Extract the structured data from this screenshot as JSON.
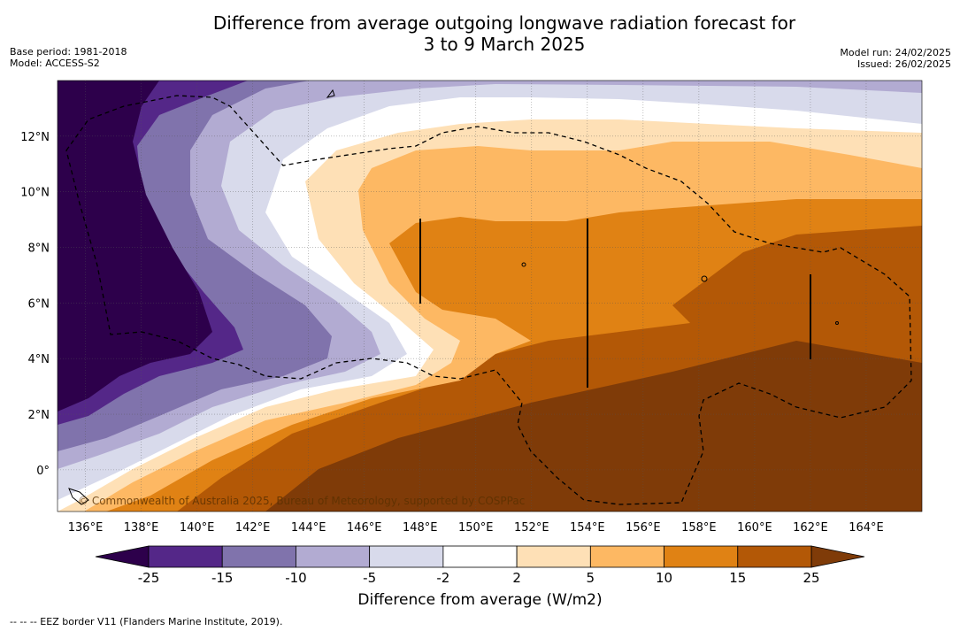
{
  "title_line1": "Difference from average outgoing longwave radiation forecast for",
  "title_line2": "3 to 9 March 2025",
  "base_period": "Base period: 1981-2018",
  "model": "Model: ACCESS-S2",
  "model_run": "Model run: 24/02/2025",
  "issued": "Issued: 26/02/2025",
  "copyright": "© Commonwealth of Australia 2025, Bureau of Meteorology, supported by COSPPac",
  "map": {
    "lon_ticks": [
      "136°E",
      "138°E",
      "140°E",
      "142°E",
      "144°E",
      "146°E",
      "148°E",
      "150°E",
      "152°E",
      "154°E",
      "156°E",
      "158°E",
      "160°E",
      "162°E",
      "164°E"
    ],
    "lat_ticks": [
      "12°N",
      "10°N",
      "8°N",
      "6°N",
      "4°N",
      "2°N",
      "0°"
    ],
    "lon_range": [
      135,
      166
    ],
    "lat_range": [
      -1.5,
      14
    ],
    "grid": "dotted"
  },
  "colorbar": {
    "labels": [
      "-25",
      "-15",
      "-10",
      "-5",
      "-2",
      "2",
      "5",
      "10",
      "15",
      "25"
    ],
    "colors": [
      "#2d004b",
      "#542788",
      "#8073ac",
      "#b2abd2",
      "#d8daeb",
      "#ffffff",
      "#fee0b6",
      "#fdb863",
      "#e08214",
      "#b35806",
      "#7f3b08"
    ],
    "title": "Difference from average (W/m2)"
  },
  "footnote": "-- -- -- EEZ border V11 (Flanders Marine Institute, 2019)."
}
